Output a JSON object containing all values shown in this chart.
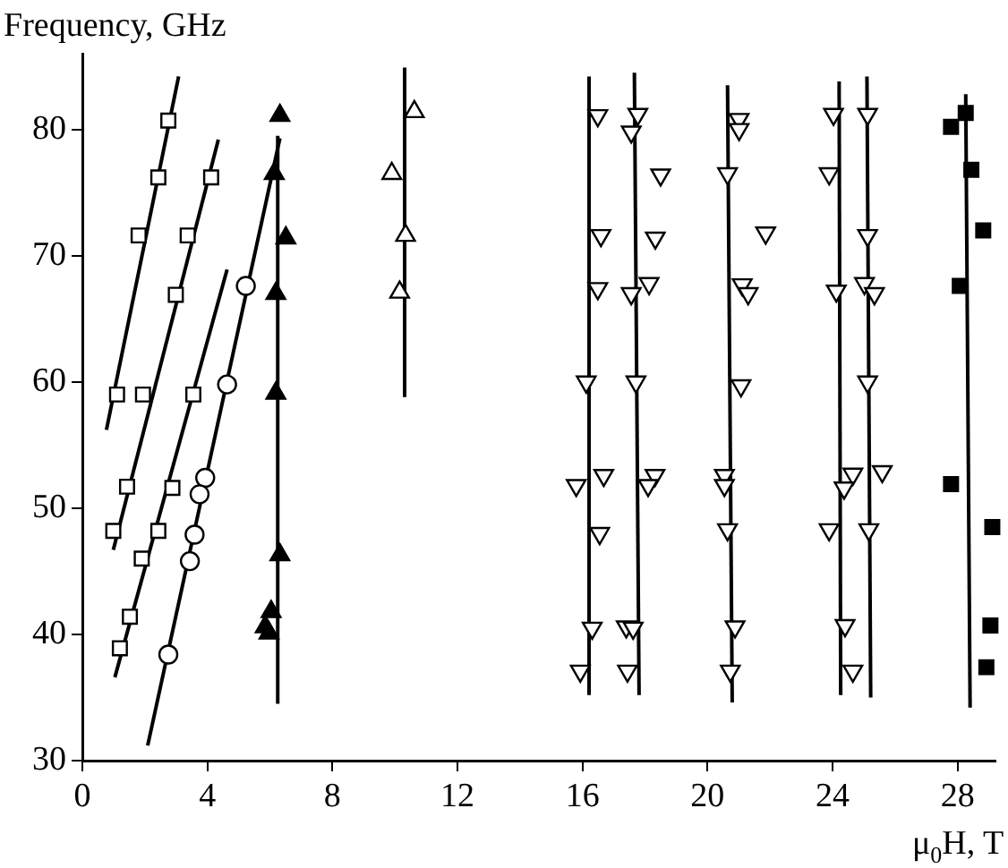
{
  "chart_data": {
    "type": "scatter",
    "ylabel": "Frequency, GHz",
    "xlabel": "μ$_{0}$H, T",
    "xlim": [
      0,
      29.2
    ],
    "ylim": [
      30,
      86
    ],
    "xticks": [
      0,
      4,
      8,
      12,
      16,
      20,
      24,
      28
    ],
    "yticks": [
      30,
      40,
      50,
      60,
      70,
      80
    ],
    "grid": false,
    "legend": false,
    "series": [
      {
        "type": "scatter",
        "marker": "square-open",
        "color": "#000000",
        "x": [
          2.75,
          2.43,
          1.8,
          1.11,
          1.94,
          1.43,
          0.99,
          1.9,
          1.52,
          1.2,
          4.12,
          3.37,
          2.99,
          3.55,
          2.88,
          2.43
        ],
        "values": [
          80.7,
          76.2,
          71.6,
          59,
          59,
          51.7,
          48.2,
          46,
          41.4,
          38.9,
          76.2,
          71.6,
          66.9,
          59,
          51.6,
          48.2
        ]
      },
      {
        "type": "scatter",
        "marker": "circle-open",
        "color": "#000000",
        "x": [
          5.23,
          4.63,
          3.93,
          3.75,
          3.59,
          3.44,
          2.75
        ],
        "values": [
          67.6,
          59.8,
          52.4,
          51.1,
          47.9,
          45.8,
          38.4
        ]
      },
      {
        "type": "scatter",
        "marker": "triangle",
        "color": "#000000",
        "x": [
          6.32,
          6.14,
          6.51,
          6.19,
          6.19,
          6.32,
          6.04,
          5.85,
          5.97
        ],
        "values": [
          81.1,
          76.5,
          71.4,
          67,
          59.1,
          46.3,
          41.8,
          40.6,
          40.1
        ]
      },
      {
        "type": "scatter",
        "marker": "triangle-open",
        "color": "#000000",
        "x": [
          10.62,
          9.9,
          10.34,
          10.15
        ],
        "values": [
          81.4,
          76.5,
          71.6,
          67.1
        ]
      },
      {
        "type": "scatter",
        "marker": "triangle-down-open",
        "color": "#000000",
        "x": [
          16.49,
          17.77,
          17.56,
          18.5,
          16.59,
          18.33,
          16.49,
          17.56,
          18.13,
          16.12,
          17.71,
          16.68,
          15.8,
          18.32,
          18.1,
          16.55,
          16.31,
          17.4,
          17.62,
          15.93,
          17.44,
          21.01,
          21.01,
          20.64,
          21.86,
          21.11,
          21.3,
          21.07,
          20.54,
          20.54,
          20.64,
          20.88,
          20.73,
          24.03,
          25.12,
          23.89,
          25.12,
          24.12,
          25.02,
          25.34,
          25.12,
          24.65,
          24.37,
          25.59,
          23.89,
          25.16,
          24.4,
          24.65
        ],
        "values": [
          81.1,
          81.2,
          79.8,
          76.4,
          71.6,
          71.4,
          67.4,
          67,
          67.8,
          60,
          60,
          52.6,
          51.8,
          52.6,
          51.8,
          48,
          40.5,
          40.6,
          40.5,
          37.1,
          37.1,
          80.8,
          80,
          76.5,
          71.8,
          67.7,
          67,
          59.7,
          52.6,
          51.8,
          48.3,
          40.6,
          37.1,
          81.2,
          81.2,
          76.5,
          71.6,
          67.2,
          67.8,
          67,
          60,
          52.7,
          51.6,
          52.9,
          48.3,
          48.3,
          40.7,
          37.1
        ]
      },
      {
        "type": "scatter",
        "marker": "square",
        "color": "#000000",
        "x": [
          27.79,
          28.26,
          28.44,
          28.82,
          28.07,
          27.79,
          29.11,
          29.05,
          28.92
        ],
        "values": [
          80.2,
          81.3,
          76.8,
          72,
          67.6,
          51.9,
          48.5,
          40.7,
          37.4
        ]
      },
      {
        "type": "line",
        "marker": "none",
        "color": "#000000",
        "x": [
          0.77,
          3.08
        ],
        "values": [
          56.2,
          84.2
        ]
      },
      {
        "type": "line",
        "marker": "none",
        "color": "#000000",
        "x": [
          0.99,
          4.35
        ],
        "values": [
          46.7,
          79.2
        ]
      },
      {
        "type": "line",
        "marker": "none",
        "color": "#000000",
        "x": [
          1.04,
          4.63
        ],
        "values": [
          36.6,
          68.9
        ]
      },
      {
        "type": "line",
        "marker": "none",
        "color": "#000000",
        "x": [
          2.09,
          6.32
        ],
        "values": [
          31.2,
          79.3
        ]
      },
      {
        "type": "line",
        "marker": "none",
        "color": "#000000",
        "x": [
          6.25,
          6.25
        ],
        "values": [
          34.5,
          79.5
        ]
      },
      {
        "type": "line",
        "marker": "none",
        "color": "#000000",
        "x": [
          10.31,
          10.31
        ],
        "values": [
          58.8,
          84.9
        ]
      },
      {
        "type": "line",
        "marker": "none",
        "color": "#000000",
        "x": [
          16.21,
          16.21
        ],
        "values": [
          35.2,
          84.2
        ]
      },
      {
        "type": "line",
        "marker": "none",
        "color": "#000000",
        "x": [
          17.81,
          17.66
        ],
        "values": [
          35.2,
          84.5
        ]
      },
      {
        "type": "line",
        "marker": "none",
        "color": "#000000",
        "x": [
          20.79,
          20.64
        ],
        "values": [
          34.6,
          83.5
        ]
      },
      {
        "type": "line",
        "marker": "none",
        "color": "#000000",
        "x": [
          24.26,
          24.21
        ],
        "values": [
          35.2,
          83.8
        ]
      },
      {
        "type": "line",
        "marker": "none",
        "color": "#000000",
        "x": [
          25.22,
          25.1
        ],
        "values": [
          35,
          84.2
        ]
      },
      {
        "type": "line",
        "marker": "none",
        "color": "#000000",
        "x": [
          28.4,
          28.26
        ],
        "values": [
          34.2,
          82.8
        ]
      }
    ]
  }
}
